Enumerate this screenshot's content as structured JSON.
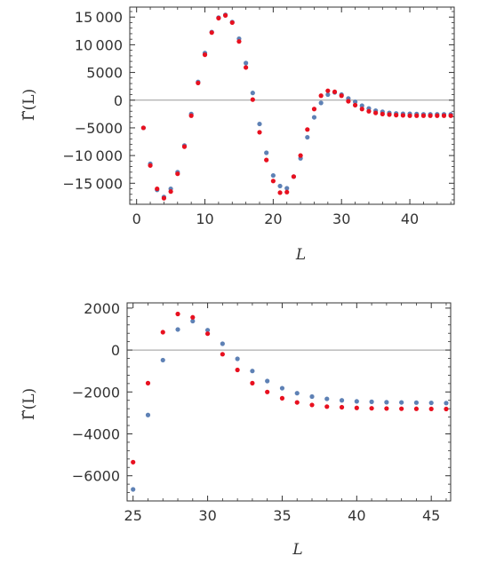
{
  "chart_data": [
    {
      "type": "scatter",
      "panel": "top",
      "xlabel": "L",
      "ylabel": "Γ̃(L)",
      "xlim": [
        -1,
        46.5
      ],
      "ylim": [
        -18800,
        16800
      ],
      "xticks": [
        0,
        10,
        20,
        30,
        40
      ],
      "xtick_labels": [
        "0",
        "10",
        "20",
        "30",
        "40"
      ],
      "yticks": [
        -15000,
        -10000,
        -5000,
        0,
        5000,
        10000,
        15000
      ],
      "ytick_labels": [
        "−15 000",
        "−10 000",
        "−5000",
        "0",
        "5000",
        "10 000",
        "15 000"
      ],
      "zero_line": true,
      "series": [
        {
          "color": "#5e81b5",
          "x": [
            1,
            2,
            3,
            4,
            5,
            6,
            7,
            8,
            9,
            10,
            11,
            12,
            13,
            14,
            15,
            16,
            17,
            18,
            19,
            20,
            21,
            22,
            23,
            24,
            25,
            26,
            27,
            28,
            29,
            30,
            31,
            32,
            33,
            34,
            35,
            36,
            37,
            38,
            39,
            40,
            41,
            42,
            43,
            44,
            45,
            46
          ],
          "y": [
            -5000,
            -11500,
            -16200,
            -17500,
            -16000,
            -13000,
            -8200,
            -2500,
            3300,
            8500,
            12300,
            14900,
            15400,
            14100,
            11100,
            6700,
            1300,
            -4300,
            -9500,
            -13600,
            -15500,
            -15900,
            -13800,
            -10500,
            -6700,
            -3100,
            -500,
            1000,
            1400,
            1000,
            300,
            -300,
            -1000,
            -1500,
            -1900,
            -2100,
            -2300,
            -2400,
            -2450,
            -2450,
            -2500,
            -2550,
            -2550,
            -2550,
            -2550,
            -2550
          ]
        },
        {
          "color": "#e8101f",
          "x": [
            1,
            2,
            3,
            4,
            5,
            6,
            7,
            8,
            9,
            10,
            11,
            12,
            13,
            14,
            15,
            16,
            17,
            18,
            19,
            20,
            21,
            22,
            23,
            24,
            25,
            26,
            27,
            28,
            29,
            30,
            31,
            32,
            33,
            34,
            35,
            36,
            37,
            38,
            39,
            40,
            41,
            42,
            43,
            44,
            45,
            46
          ],
          "y": [
            -5000,
            -11800,
            -16000,
            -17700,
            -16500,
            -13300,
            -8400,
            -2800,
            3100,
            8200,
            12200,
            14800,
            15300,
            14000,
            10600,
            5900,
            100,
            -5800,
            -10800,
            -14600,
            -16700,
            -16600,
            -13800,
            -10000,
            -5300,
            -1600,
            800,
            1700,
            1500,
            800,
            -200,
            -900,
            -1600,
            -2000,
            -2300,
            -2500,
            -2600,
            -2700,
            -2750,
            -2800,
            -2800,
            -2800,
            -2800,
            -2800,
            -2800,
            -2800
          ]
        }
      ]
    },
    {
      "type": "scatter",
      "panel": "bottom",
      "xlabel": "L",
      "ylabel": "Γ̃(L)",
      "xlim": [
        24.6,
        46.3
      ],
      "ylim": [
        -7200,
        2250
      ],
      "xticks": [
        25,
        30,
        35,
        40,
        45
      ],
      "xtick_labels": [
        "25",
        "30",
        "35",
        "40",
        "45"
      ],
      "yticks": [
        -6000,
        -4000,
        -2000,
        0,
        2000
      ],
      "ytick_labels": [
        "−6000",
        "−4000",
        "−2000",
        "0",
        "2000"
      ],
      "zero_line": true,
      "series": [
        {
          "color": "#5e81b5",
          "x": [
            25,
            26,
            27,
            28,
            29,
            30,
            31,
            32,
            33,
            34,
            35,
            36,
            37,
            38,
            39,
            40,
            41,
            42,
            43,
            44,
            45,
            46
          ],
          "y": [
            -6650,
            -3100,
            -480,
            980,
            1380,
            950,
            300,
            -420,
            -1000,
            -1480,
            -1820,
            -2060,
            -2220,
            -2330,
            -2400,
            -2450,
            -2470,
            -2490,
            -2500,
            -2510,
            -2520,
            -2530
          ]
        },
        {
          "color": "#e8101f",
          "x": [
            25,
            26,
            27,
            28,
            29,
            30,
            31,
            32,
            33,
            34,
            35,
            36,
            37,
            38,
            39,
            40,
            41,
            42,
            43,
            44,
            45,
            46
          ],
          "y": [
            -5350,
            -1580,
            850,
            1720,
            1560,
            780,
            -200,
            -950,
            -1580,
            -2000,
            -2300,
            -2500,
            -2620,
            -2700,
            -2730,
            -2760,
            -2780,
            -2790,
            -2800,
            -2805,
            -2810,
            -2815
          ]
        }
      ]
    }
  ]
}
